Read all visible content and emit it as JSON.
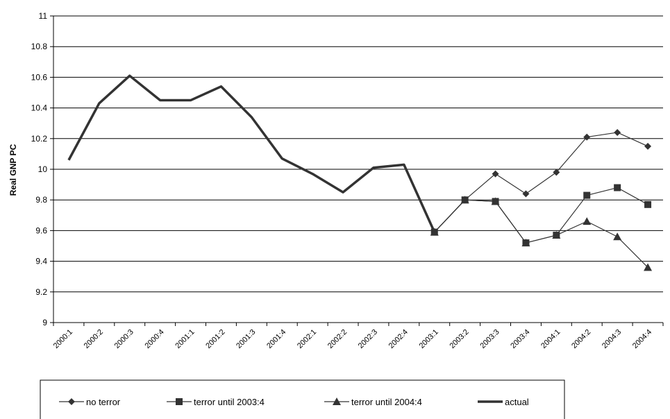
{
  "chart_data": {
    "type": "line",
    "ylabel": "Real GNP PC",
    "xlabel": "",
    "title": "",
    "ylim": [
      9,
      11
    ],
    "yticks": [
      9,
      9.2,
      9.4,
      9.6,
      9.8,
      10,
      10.2,
      10.4,
      10.6,
      10.8,
      11
    ],
    "ytick_labels": [
      "9",
      "9.2",
      "9.4",
      "9.6",
      "9.8",
      "10",
      "10.2",
      "10.4",
      "10.6",
      "10.8",
      "11"
    ],
    "categories": [
      "2000:1",
      "2000:2",
      "2000:3",
      "2000:4",
      "2001:1",
      "2001:2",
      "2001:3",
      "2001:4",
      "2002:1",
      "2002:2",
      "2002:3",
      "2002:4",
      "2003:1",
      "2003:2",
      "2003:3",
      "2003:4",
      "2004:1",
      "2004:2",
      "2004:3",
      "2004:4"
    ],
    "grid": "horizontal",
    "legend_position": "bottom",
    "series": [
      {
        "name": "no terror",
        "marker": "diamond",
        "color": "#333333",
        "values": [
          null,
          null,
          null,
          null,
          null,
          null,
          null,
          null,
          null,
          null,
          null,
          null,
          9.59,
          9.8,
          9.97,
          9.84,
          9.98,
          10.21,
          10.24,
          10.15
        ]
      },
      {
        "name": "terror until 2003:4",
        "marker": "square",
        "color": "#333333",
        "values": [
          null,
          null,
          null,
          null,
          null,
          null,
          null,
          null,
          null,
          null,
          null,
          null,
          9.59,
          9.8,
          9.79,
          9.52,
          9.57,
          9.83,
          9.88,
          9.77
        ]
      },
      {
        "name": "terror until 2004:4",
        "marker": "triangle",
        "color": "#333333",
        "values": [
          null,
          null,
          null,
          null,
          null,
          null,
          null,
          null,
          null,
          null,
          null,
          null,
          9.59,
          9.8,
          9.79,
          9.52,
          9.57,
          9.66,
          9.56,
          9.36
        ]
      },
      {
        "name": "actual",
        "marker": "none",
        "thick": true,
        "color": "#333333",
        "values": [
          10.06,
          10.43,
          10.61,
          10.45,
          10.45,
          10.54,
          10.34,
          10.07,
          9.97,
          9.85,
          10.01,
          10.03,
          9.59,
          null,
          null,
          null,
          null,
          null,
          null,
          null
        ]
      }
    ]
  }
}
